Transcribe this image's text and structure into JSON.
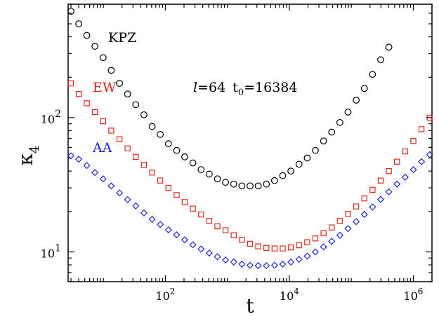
{
  "chart_data": {
    "type": "scatter",
    "title": "",
    "xlabel": "t",
    "ylabel": "κ",
    "ylabel_subscript": "4",
    "xscale": "log",
    "yscale": "log",
    "xlim": [
      2.7,
      2000000
    ],
    "ylim": [
      6.0,
      700
    ],
    "grid": false,
    "legend": "labels placed beside each series, top-left",
    "x_ticks": [
      {
        "value": 100,
        "base": "10",
        "exp": "2"
      },
      {
        "value": 10000,
        "base": "10",
        "exp": "4"
      },
      {
        "value": 1000000,
        "base": "10",
        "exp": "6"
      }
    ],
    "y_ticks": [
      {
        "value": 10,
        "base": "10",
        "exp": "1"
      },
      {
        "value": 100,
        "base": "10",
        "exp": "2"
      }
    ],
    "annotation": {
      "l": "l",
      "l_value": "=64",
      "t0": "t",
      "t0_sub": "0",
      "t0_value": "=16384"
    },
    "series": [
      {
        "name": "KPZ",
        "marker": "circle",
        "color": "#000000",
        "x": [
          3.0,
          4.0,
          5.4,
          7.3,
          9.9,
          13.4,
          18.2,
          24.6,
          33.3,
          45.1,
          61.1,
          82.7,
          112,
          152,
          205,
          278,
          377,
          510,
          691,
          935,
          1267,
          1715,
          2323,
          3146,
          4261,
          5771,
          7815,
          10585,
          14335,
          19415,
          26294,
          35611,
          48229,
          65318,
          88462,
          119805,
          162255,
          219747,
          297611,
          403067
        ],
        "y": [
          620,
          500,
          410,
          340,
          280,
          225,
          180,
          150,
          125,
          105,
          86,
          75,
          64,
          57,
          51,
          46,
          41,
          38,
          35,
          33,
          32,
          31,
          31,
          31,
          32,
          34,
          37,
          40,
          45,
          50,
          57,
          67,
          78,
          92,
          110,
          135,
          165,
          210,
          270,
          335
        ]
      },
      {
        "name": "EW",
        "marker": "square",
        "color": "#e0261c",
        "x": [
          3.0,
          4.0,
          5.4,
          7.3,
          9.9,
          13.4,
          18.2,
          24.6,
          33.3,
          45.1,
          61.1,
          82.7,
          112,
          152,
          205,
          278,
          377,
          510,
          691,
          935,
          1267,
          1715,
          2323,
          3146,
          4261,
          5771,
          7815,
          10585,
          14335,
          19415,
          26294,
          35611,
          48229,
          65318,
          88462,
          119805,
          162255,
          219747,
          297611,
          403067,
          545892,
          739328,
          1001306,
          1356113,
          1836637
        ],
        "y": [
          180,
          150,
          128,
          110,
          94,
          80,
          69,
          59,
          51,
          44.5,
          39,
          34,
          30,
          26.5,
          23.5,
          21,
          19,
          17,
          15.5,
          14.5,
          13.3,
          12.3,
          11.5,
          11.0,
          10.7,
          10.6,
          10.6,
          10.8,
          11.2,
          11.8,
          12.6,
          13.8,
          15.2,
          17,
          19.2,
          21.8,
          25,
          29,
          34,
          40,
          47,
          56,
          67,
          82,
          100
        ]
      },
      {
        "name": "AA",
        "marker": "diamond",
        "color": "#1c24d8",
        "x": [
          3.0,
          4.0,
          5.4,
          7.3,
          9.9,
          13.4,
          18.2,
          24.6,
          33.3,
          45.1,
          61.1,
          82.7,
          112,
          152,
          205,
          278,
          377,
          510,
          691,
          935,
          1267,
          1715,
          2323,
          3146,
          4261,
          5771,
          7815,
          10585,
          14335,
          19415,
          26294,
          35611,
          48229,
          65318,
          88462,
          119805,
          162255,
          219747,
          297611,
          403067,
          545892,
          739328,
          1001306,
          1356113,
          1836637
        ],
        "y": [
          52,
          49,
          44,
          39,
          35,
          31,
          27.5,
          24.5,
          22,
          19.5,
          17.5,
          16,
          14.6,
          13.4,
          12.3,
          11.3,
          10.5,
          9.8,
          9.2,
          8.7,
          8.4,
          8.1,
          7.95,
          7.9,
          7.9,
          7.95,
          8.1,
          8.4,
          8.8,
          9.3,
          10,
          10.9,
          12,
          13.3,
          14.9,
          16.8,
          19,
          21.6,
          24.6,
          28,
          32,
          36,
          41,
          47,
          53
        ]
      }
    ]
  }
}
